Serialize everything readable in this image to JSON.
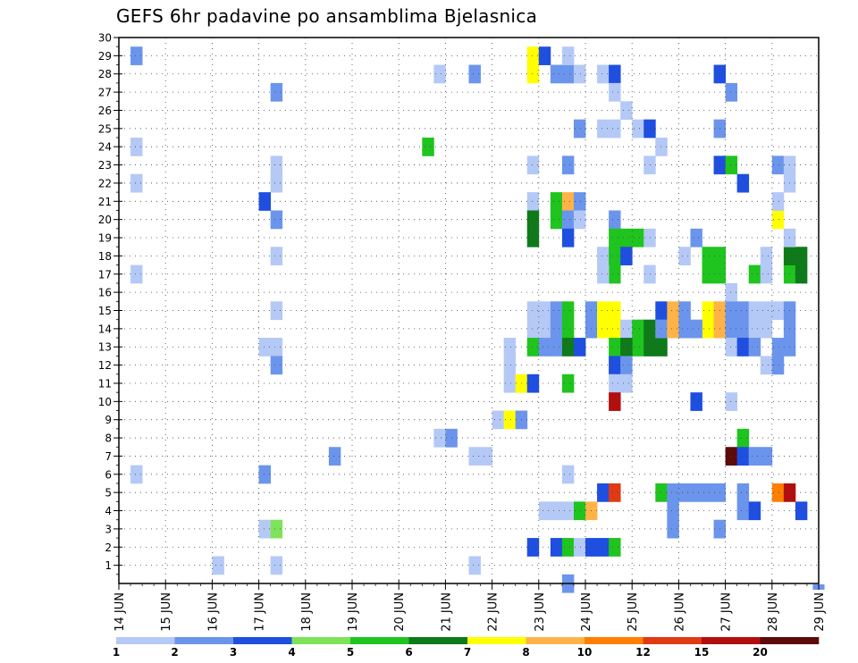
{
  "chart_data": {
    "type": "heatmap",
    "title": "GEFS 6hr padavine po ansamblima Bjelasnica",
    "xlabel": "",
    "ylabel": "",
    "x_tick_labels": [
      "14 JUN",
      "15 JUN",
      "16 JUN",
      "17 JUN",
      "18 JUN",
      "19 JUN",
      "20 JUN",
      "21 JUN",
      "22 JUN",
      "23 JUN",
      "24 JUN",
      "25 JUN",
      "26 JUN",
      "27 JUN",
      "28 JUN",
      "29 JUN"
    ],
    "xlim": [
      "14 JUN 00",
      "29 JUN 00"
    ],
    "steps_per_day": 4,
    "y_ticks": [
      1,
      2,
      3,
      4,
      5,
      6,
      7,
      8,
      9,
      10,
      11,
      12,
      13,
      14,
      15,
      16,
      17,
      18,
      19,
      20,
      21,
      22,
      23,
      24,
      25,
      26,
      27,
      28,
      29,
      30
    ],
    "ylim": [
      0,
      30
    ],
    "grid": true,
    "colorbar": {
      "labels": [
        "1",
        "2",
        "3",
        "4",
        "5",
        "6",
        "7",
        "8",
        "10",
        "12",
        "15",
        "20"
      ],
      "colors": [
        "#b5c9f7",
        "#6b95ec",
        "#1f4fe0",
        "#7ee35a",
        "#1fc41f",
        "#0e7a1a",
        "#ffff00",
        "#ffb347",
        "#ff7f00",
        "#e03a14",
        "#b30e0e",
        "#5c0a0a"
      ]
    },
    "cells_description": "Each cell is [member (y), time step index since 14 JUN 00 UTC (6-hour steps), color class index 0-11 into colorbar.colors]",
    "cells": [
      [
        29,
        1,
        1
      ],
      [
        24,
        1,
        0
      ],
      [
        22,
        1,
        0
      ],
      [
        17,
        1,
        0
      ],
      [
        6,
        1,
        0
      ],
      [
        1,
        8,
        0
      ],
      [
        27,
        13,
        1
      ],
      [
        23,
        13,
        0
      ],
      [
        22,
        13,
        0
      ],
      [
        21,
        12,
        2
      ],
      [
        20,
        13,
        1
      ],
      [
        18,
        13,
        0
      ],
      [
        15,
        13,
        0
      ],
      [
        13,
        12,
        0
      ],
      [
        13,
        13,
        0
      ],
      [
        12,
        13,
        1
      ],
      [
        6,
        12,
        1
      ],
      [
        3,
        12,
        0
      ],
      [
        3,
        13,
        3
      ],
      [
        1,
        13,
        0
      ],
      [
        7,
        18,
        1
      ],
      [
        24,
        26,
        4
      ],
      [
        28,
        27,
        0
      ],
      [
        8,
        27,
        0
      ],
      [
        8,
        28,
        1
      ],
      [
        28,
        30,
        1
      ],
      [
        7,
        30,
        0
      ],
      [
        7,
        31,
        0
      ],
      [
        1,
        30,
        0
      ],
      [
        9,
        32,
        0
      ],
      [
        9,
        33,
        6
      ],
      [
        9,
        34,
        1
      ],
      [
        13,
        33,
        0
      ],
      [
        12,
        33,
        0
      ],
      [
        11,
        33,
        0
      ],
      [
        11,
        34,
        6
      ],
      [
        11,
        35,
        2
      ],
      [
        29,
        35,
        6
      ],
      [
        28,
        35,
        6
      ],
      [
        29,
        36,
        2
      ],
      [
        23,
        35,
        0
      ],
      [
        21,
        35,
        0
      ],
      [
        20,
        35,
        5
      ],
      [
        19,
        35,
        5
      ],
      [
        15,
        35,
        0
      ],
      [
        15,
        36,
        0
      ],
      [
        14,
        35,
        0
      ],
      [
        14,
        36,
        0
      ],
      [
        13,
        35,
        4
      ],
      [
        13,
        36,
        1
      ],
      [
        2,
        35,
        2
      ],
      [
        15,
        37,
        1
      ],
      [
        14,
        37,
        1
      ],
      [
        13,
        37,
        1
      ],
      [
        4,
        36,
        0
      ],
      [
        4,
        37,
        0
      ],
      [
        28,
        37,
        1
      ],
      [
        28,
        38,
        1
      ],
      [
        28,
        39,
        0
      ],
      [
        29,
        38,
        0
      ],
      [
        25,
        39,
        1
      ],
      [
        23,
        38,
        1
      ],
      [
        21,
        37,
        4
      ],
      [
        20,
        37,
        4
      ],
      [
        21,
        38,
        7
      ],
      [
        20,
        38,
        1
      ],
      [
        21,
        39,
        1
      ],
      [
        20,
        39,
        0
      ],
      [
        19,
        38,
        2
      ],
      [
        15,
        38,
        4
      ],
      [
        14,
        38,
        4
      ],
      [
        13,
        38,
        5
      ],
      [
        13,
        39,
        2
      ],
      [
        11,
        38,
        4
      ],
      [
        6,
        38,
        0
      ],
      [
        4,
        38,
        0
      ],
      [
        4,
        39,
        4
      ],
      [
        4,
        40,
        7
      ],
      [
        2,
        37,
        2
      ],
      [
        2,
        38,
        4
      ],
      [
        2,
        39,
        0
      ],
      [
        2,
        40,
        2
      ],
      [
        2,
        41,
        2
      ],
      [
        2,
        42,
        4
      ],
      [
        0,
        38,
        1
      ],
      [
        15,
        40,
        1
      ],
      [
        14,
        40,
        1
      ],
      [
        28,
        41,
        0
      ],
      [
        28,
        42,
        2
      ],
      [
        25,
        42,
        0
      ],
      [
        18,
        41,
        0
      ],
      [
        18,
        42,
        4
      ],
      [
        17,
        42,
        4
      ],
      [
        17,
        41,
        0
      ],
      [
        20,
        42,
        1
      ],
      [
        19,
        42,
        4
      ],
      [
        19,
        43,
        4
      ],
      [
        19,
        44,
        4
      ],
      [
        19,
        45,
        0
      ],
      [
        18,
        43,
        2
      ],
      [
        15,
        41,
        6
      ],
      [
        14,
        41,
        6
      ],
      [
        15,
        42,
        6
      ],
      [
        14,
        42,
        6
      ],
      [
        14,
        43,
        0
      ],
      [
        14,
        44,
        4
      ],
      [
        13,
        44,
        4
      ],
      [
        14,
        45,
        5
      ],
      [
        13,
        45,
        5
      ],
      [
        14,
        46,
        4
      ],
      [
        13,
        46,
        5
      ],
      [
        13,
        42,
        4
      ],
      [
        13,
        43,
        5
      ],
      [
        12,
        42,
        2
      ],
      [
        11,
        42,
        0
      ],
      [
        12,
        43,
        1
      ],
      [
        11,
        43,
        0
      ],
      [
        10,
        42,
        10
      ],
      [
        5,
        41,
        2
      ],
      [
        5,
        42,
        9
      ],
      [
        27,
        42,
        0
      ],
      [
        26,
        43,
        0
      ],
      [
        25,
        41,
        0
      ],
      [
        25,
        44,
        0
      ],
      [
        25,
        45,
        2
      ],
      [
        24,
        46,
        0
      ],
      [
        23,
        45,
        0
      ],
      [
        17,
        45,
        0
      ],
      [
        15,
        46,
        2
      ],
      [
        14,
        46,
        1
      ],
      [
        15,
        47,
        7
      ],
      [
        14,
        47,
        7
      ],
      [
        15,
        48,
        1
      ],
      [
        14,
        48,
        1
      ],
      [
        5,
        46,
        4
      ],
      [
        5,
        47,
        1
      ],
      [
        5,
        48,
        1
      ],
      [
        5,
        49,
        1
      ],
      [
        5,
        50,
        1
      ],
      [
        5,
        51,
        1
      ],
      [
        4,
        47,
        1
      ],
      [
        3,
        47,
        1
      ],
      [
        18,
        48,
        0
      ],
      [
        19,
        49,
        1
      ],
      [
        17,
        50,
        4
      ],
      [
        17,
        51,
        4
      ],
      [
        18,
        50,
        4
      ],
      [
        18,
        51,
        4
      ],
      [
        15,
        50,
        6
      ],
      [
        15,
        51,
        7
      ],
      [
        14,
        50,
        6
      ],
      [
        14,
        51,
        7
      ],
      [
        14,
        49,
        1
      ],
      [
        10,
        49,
        2
      ],
      [
        28,
        51,
        2
      ],
      [
        25,
        51,
        1
      ],
      [
        23,
        51,
        2
      ],
      [
        23,
        52,
        4
      ],
      [
        27,
        52,
        1
      ],
      [
        22,
        53,
        2
      ],
      [
        16,
        52,
        0
      ],
      [
        15,
        52,
        1
      ],
      [
        14,
        52,
        1
      ],
      [
        15,
        53,
        1
      ],
      [
        14,
        53,
        1
      ],
      [
        15,
        54,
        0
      ],
      [
        15,
        55,
        0
      ],
      [
        14,
        54,
        0
      ],
      [
        14,
        55,
        0
      ],
      [
        13,
        52,
        0
      ],
      [
        13,
        53,
        2
      ],
      [
        13,
        54,
        1
      ],
      [
        10,
        52,
        0
      ],
      [
        8,
        53,
        4
      ],
      [
        7,
        52,
        11
      ],
      [
        7,
        53,
        2
      ],
      [
        7,
        54,
        1
      ],
      [
        7,
        55,
        1
      ],
      [
        3,
        51,
        1
      ],
      [
        5,
        53,
        1
      ],
      [
        4,
        53,
        1
      ],
      [
        4,
        54,
        2
      ],
      [
        17,
        54,
        4
      ],
      [
        18,
        55,
        0
      ],
      [
        17,
        55,
        0
      ],
      [
        12,
        55,
        0
      ],
      [
        20,
        56,
        6
      ],
      [
        21,
        56,
        0
      ],
      [
        17,
        57,
        4
      ],
      [
        18,
        57,
        5
      ],
      [
        17,
        58,
        5
      ],
      [
        18,
        58,
        5
      ],
      [
        15,
        56,
        0
      ],
      [
        15,
        57,
        1
      ],
      [
        14,
        57,
        1
      ],
      [
        13,
        56,
        1
      ],
      [
        13,
        57,
        1
      ],
      [
        12,
        56,
        1
      ],
      [
        5,
        56,
        8
      ],
      [
        5,
        57,
        10
      ],
      [
        4,
        58,
        2
      ],
      [
        23,
        56,
        1
      ],
      [
        23,
        57,
        0
      ],
      [
        22,
        57,
        0
      ],
      [
        19,
        57,
        0
      ]
    ],
    "offscale_marks": [
      [
        0,
        60,
        1
      ]
    ]
  }
}
